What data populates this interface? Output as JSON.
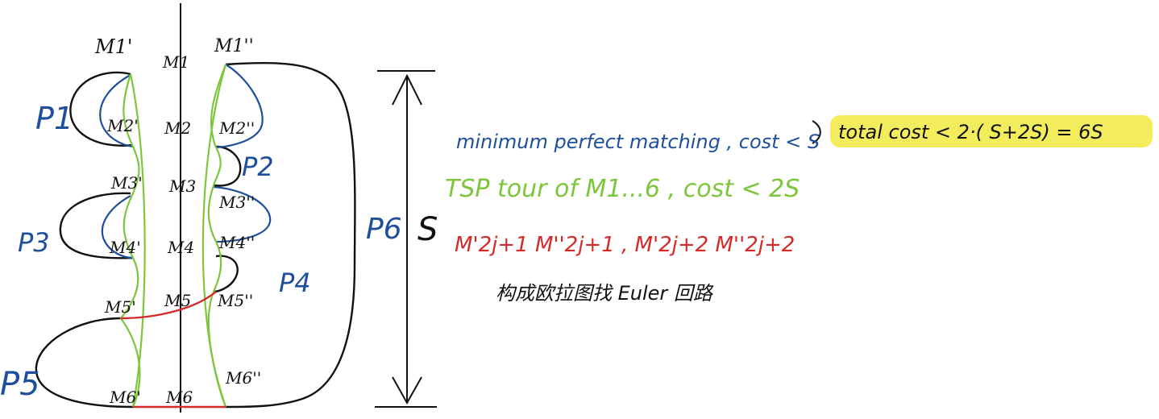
{
  "colors": {
    "ink": "#111111",
    "blue": "#1f4e9c",
    "green": "#7dc63c",
    "red": "#d42a2a",
    "highlight": "#f3ec5c"
  },
  "nodes": {
    "left": [
      "M1'",
      "M2'",
      "M3'",
      "M4'",
      "M5'",
      "M6'"
    ],
    "middle": [
      "M1",
      "M2",
      "M3",
      "M4",
      "M5",
      "M6"
    ],
    "right": [
      "M1''",
      "M2''",
      "M3''",
      "M4''",
      "M5''",
      "M6''"
    ]
  },
  "paths": {
    "p1": "P1",
    "p2": "P2",
    "p3": "P3",
    "p4": "P4",
    "p5": "P5",
    "p6": "P6"
  },
  "measure": {
    "s": "S"
  },
  "notes": {
    "matching": "minimum perfect matching , cost < S",
    "tsp": "TSP tour of M1...6 , cost < 2S",
    "red_edges": "M'2j+1 M''2j+1 , M'2j+2 M''2j+2",
    "euler": "构成欧拉图找 Euler 回路",
    "total": "total cost  < 2·( S+2S) = 6S"
  }
}
